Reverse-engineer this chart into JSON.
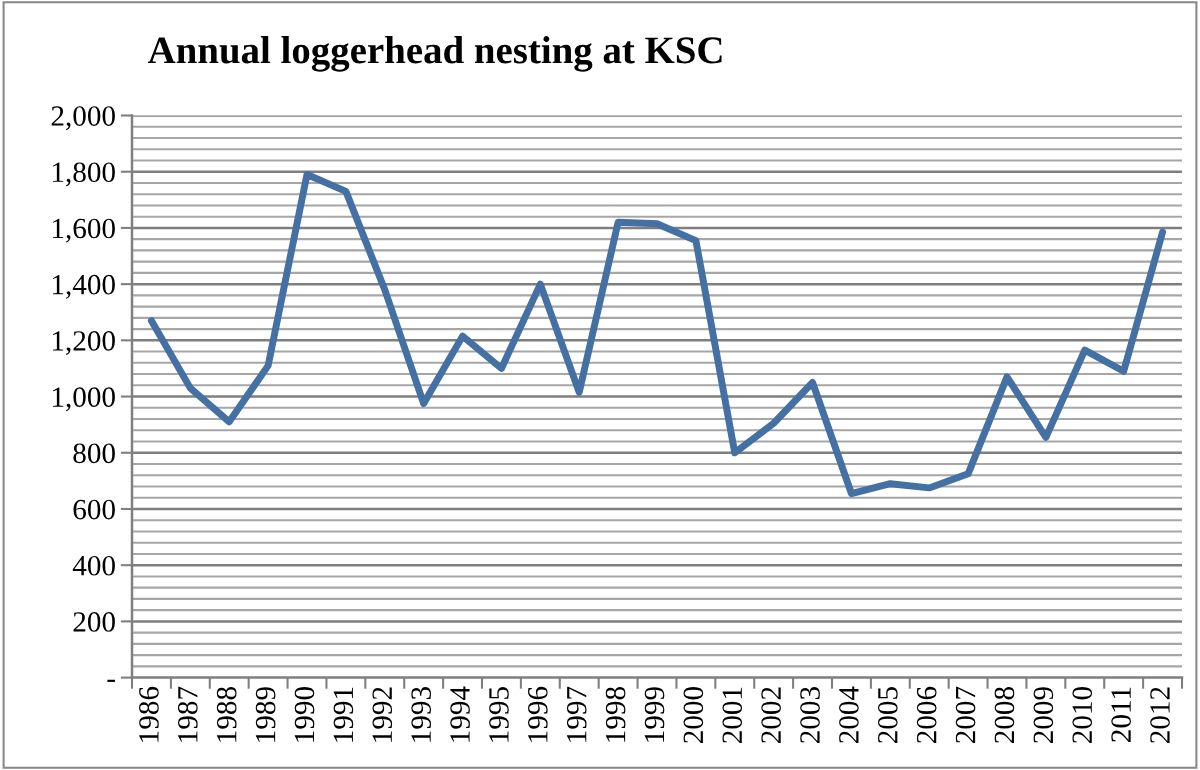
{
  "chart_data": {
    "type": "line",
    "title": "Annual loggerhead nesting at KSC",
    "categories": [
      "1986",
      "1987",
      "1988",
      "1989",
      "1990",
      "1991",
      "1992",
      "1993",
      "1994",
      "1995",
      "1996",
      "1997",
      "1998",
      "1999",
      "2000",
      "2001",
      "2002",
      "2003",
      "2004",
      "2005",
      "2006",
      "2007",
      "2008",
      "2009",
      "2010",
      "2011",
      "2012"
    ],
    "series": [
      {
        "color": "#4470a3",
        "values": [
          1270,
          1030,
          910,
          1110,
          1790,
          1730,
          1380,
          975,
          1215,
          1100,
          1400,
          1015,
          1620,
          1615,
          1555,
          800,
          905,
          1050,
          655,
          690,
          675,
          725,
          1070,
          855,
          1165,
          1090,
          1585
        ]
      }
    ],
    "ylim": [
      0,
      2000
    ],
    "yticks": [
      {
        "value": 0,
        "label": "-"
      },
      {
        "value": 200,
        "label": "200"
      },
      {
        "value": 400,
        "label": "400"
      },
      {
        "value": 600,
        "label": "600"
      },
      {
        "value": 800,
        "label": "800"
      },
      {
        "value": 1000,
        "label": "1,000"
      },
      {
        "value": 1200,
        "label": "1,200"
      },
      {
        "value": 1400,
        "label": "1,400"
      },
      {
        "value": 1600,
        "label": "1,600"
      },
      {
        "value": 1800,
        "label": "1,800"
      },
      {
        "value": 2000,
        "label": "2,000"
      }
    ],
    "grid": "y",
    "marker": "none",
    "line_style": "solid"
  }
}
